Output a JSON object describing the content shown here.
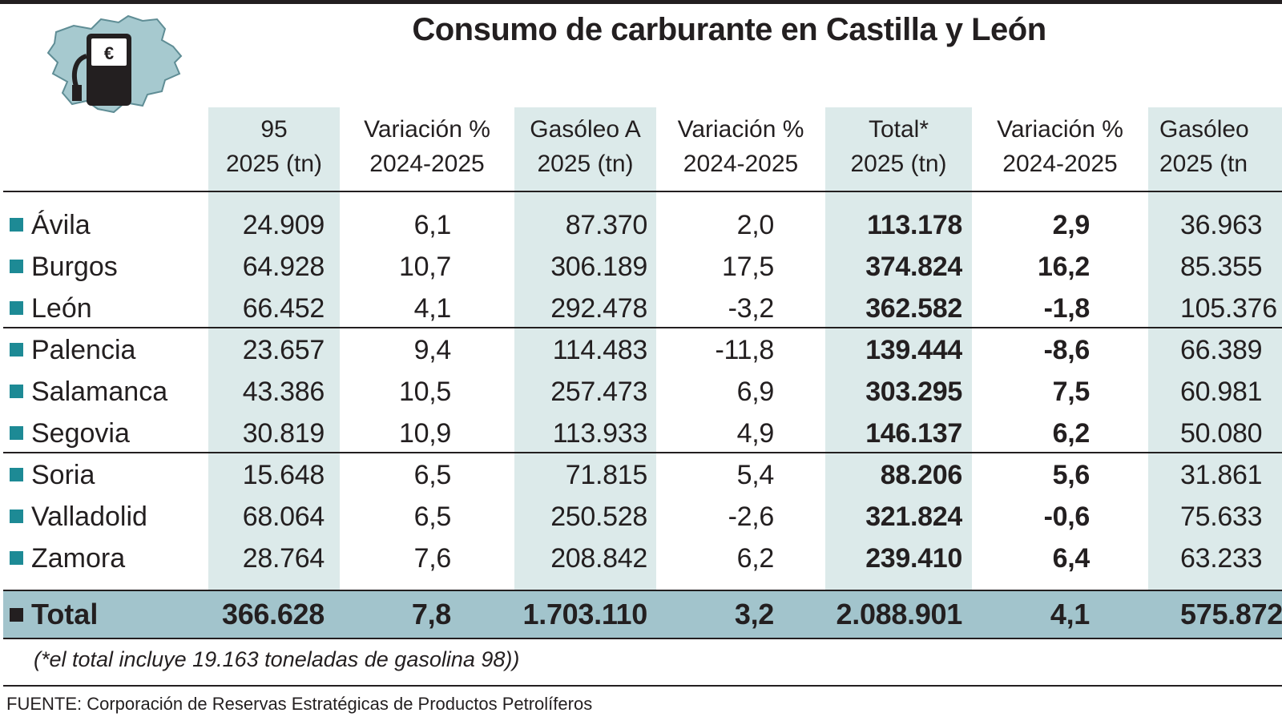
{
  "title": "Consumo de carburante en Castilla y León",
  "chart_data": {
    "type": "table",
    "title": "Consumo de carburante en Castilla y León",
    "columns": [
      {
        "line1": "95",
        "line2": "2025 (tn)"
      },
      {
        "line1": "Variación %",
        "line2": "2024-2025"
      },
      {
        "line1": "Gasóleo A",
        "line2": "2025 (tn)"
      },
      {
        "line1": "Variación %",
        "line2": "2024-2025"
      },
      {
        "line1": "Total*",
        "line2": "2025 (tn)"
      },
      {
        "line1": "Variación %",
        "line2": "2024-2025"
      },
      {
        "line1": "Gasóleo",
        "line2": "2025 (tn"
      }
    ],
    "rows": [
      {
        "name": "Ávila",
        "values": [
          "24.909",
          "6,1",
          "87.370",
          "2,0",
          "113.178",
          "2,9",
          "36.963"
        ]
      },
      {
        "name": "Burgos",
        "values": [
          "64.928",
          "10,7",
          "306.189",
          "17,5",
          "374.824",
          "16,2",
          "85.355"
        ]
      },
      {
        "name": "León",
        "values": [
          "66.452",
          "4,1",
          "292.478",
          "-3,2",
          "362.582",
          "-1,8",
          "105.376"
        ]
      },
      {
        "name": "Palencia",
        "values": [
          "23.657",
          "9,4",
          "114.483",
          "-11,8",
          "139.444",
          "-8,6",
          "66.389"
        ]
      },
      {
        "name": "Salamanca",
        "values": [
          "43.386",
          "10,5",
          "257.473",
          "6,9",
          "303.295",
          "7,5",
          "60.981"
        ]
      },
      {
        "name": "Segovia",
        "values": [
          "30.819",
          "10,9",
          "113.933",
          "4,9",
          "146.137",
          "6,2",
          "50.080"
        ]
      },
      {
        "name": "Soria",
        "values": [
          "15.648",
          "6,5",
          "71.815",
          "5,4",
          "88.206",
          "5,6",
          "31.861"
        ]
      },
      {
        "name": "Valladolid",
        "values": [
          "68.064",
          "6,5",
          "250.528",
          "-2,6",
          "321.824",
          "-0,6",
          "75.633"
        ]
      },
      {
        "name": "Zamora",
        "values": [
          "28.764",
          "7,6",
          "208.842",
          "6,2",
          "239.410",
          "6,4",
          "63.233"
        ]
      }
    ],
    "total": {
      "name": "Total",
      "values": [
        "366.628",
        "7,8",
        "1.703.110",
        "3,2",
        "2.088.901",
        "4,1",
        "575.872"
      ]
    },
    "note": "(*el total incluye 19.163 toneladas de gasolina 98))",
    "source": "FUENTE: Corporación de Reservas Estratégicas de Productos Petrolíferos"
  },
  "colors": {
    "ink": "#231f20",
    "column_shade": "#dceaea",
    "total_band": "#a2c4cc",
    "bullet": "#1d8a95",
    "map_fill": "#a6c9cf"
  },
  "icons": {
    "logo": "fuel-pump-map-icon",
    "currency": "€"
  }
}
